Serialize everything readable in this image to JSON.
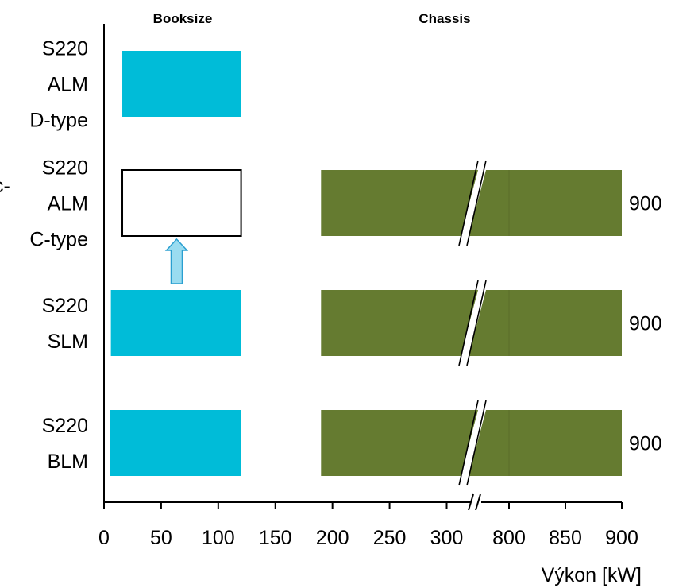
{
  "colors": {
    "booksize": "#00bcd8",
    "chassis": "#657b30",
    "arrow_fill": "#9adcf0",
    "arrow_stroke": "#2a9fd0",
    "axis": "#000000"
  },
  "chart_data": {
    "type": "bar",
    "orientation": "horizontal",
    "title": "",
    "section_headers": {
      "left": "Booksize",
      "right": "Chassis"
    },
    "xlabel": "Výkon [kW]",
    "ylabel": "",
    "axis_break": {
      "from": 300,
      "to": 800
    },
    "x_ticks": [
      0,
      50,
      100,
      150,
      200,
      250,
      300,
      800,
      850,
      900
    ],
    "x_tick_labels": [
      "0",
      "50",
      "100",
      "150",
      "200",
      "250",
      "300",
      "800",
      "850",
      "900"
    ],
    "cut_off_left_text": "c-",
    "categories": [
      {
        "lines": [
          "S220",
          "ALM",
          "D-type"
        ]
      },
      {
        "lines": [
          "S220",
          "ALM",
          "C-type"
        ]
      },
      {
        "lines": [
          "S220",
          "SLM"
        ]
      },
      {
        "lines": [
          "S220",
          "BLM"
        ]
      }
    ],
    "bars": [
      {
        "category": 0,
        "group": "Booksize",
        "start": 16,
        "end": 120,
        "filled": true
      },
      {
        "category": 1,
        "group": "Booksize",
        "start": 16,
        "end": 120,
        "filled": false
      },
      {
        "category": 1,
        "group": "Chassis",
        "start": 190,
        "end": 900,
        "filled": true
      },
      {
        "category": 2,
        "group": "Booksize",
        "start": 6,
        "end": 120,
        "filled": true
      },
      {
        "category": 2,
        "group": "Chassis",
        "start": 190,
        "end": 900,
        "filled": true
      },
      {
        "category": 3,
        "group": "Booksize",
        "start": 5,
        "end": 120,
        "filled": true
      },
      {
        "category": 3,
        "group": "Chassis",
        "start": 190,
        "end": 900,
        "filled": true
      }
    ],
    "end_labels": [
      {
        "category": 1,
        "text": "900"
      },
      {
        "category": 2,
        "text": "900"
      },
      {
        "category": 3,
        "text": "900"
      }
    ],
    "annotation": {
      "type": "arrow-up",
      "from_category": 2,
      "to_category": 1,
      "x": 65
    }
  }
}
